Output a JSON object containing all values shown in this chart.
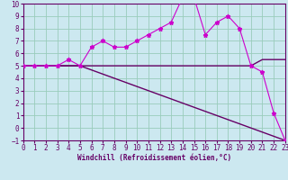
{
  "xlabel": "Windchill (Refroidissement éolien,°C)",
  "bg_color": "#cce8f0",
  "grid_color": "#99ccbb",
  "line_color1": "#cc00cc",
  "line_color2": "#660066",
  "line_color3": "#aa00aa",
  "axis_color": "#660066",
  "xmin": 0,
  "xmax": 23,
  "ymin": -1,
  "ymax": 10,
  "yticks": [
    -1,
    0,
    1,
    2,
    3,
    4,
    5,
    6,
    7,
    8,
    9,
    10
  ],
  "xticks": [
    0,
    1,
    2,
    3,
    4,
    5,
    6,
    7,
    8,
    9,
    10,
    11,
    12,
    13,
    14,
    15,
    16,
    17,
    18,
    19,
    20,
    21,
    22,
    23
  ],
  "line1_x": [
    0,
    1,
    2,
    3,
    4,
    5,
    6,
    7,
    8,
    9,
    10,
    11,
    12,
    13,
    14,
    15,
    16,
    17,
    18,
    19,
    20,
    21,
    22,
    23
  ],
  "line1_y": [
    5.0,
    5.0,
    5.0,
    5.0,
    5.5,
    5.0,
    6.5,
    7.0,
    6.5,
    6.5,
    7.0,
    7.5,
    8.0,
    8.5,
    10.5,
    10.5,
    7.5,
    8.5,
    9.0,
    8.0,
    5.0,
    4.5,
    1.2,
    -1.0
  ],
  "line2_x": [
    0,
    5,
    19,
    20,
    21,
    22,
    23
  ],
  "line2_y": [
    5.0,
    5.0,
    5.0,
    5.0,
    5.5,
    5.5,
    5.5
  ],
  "line3_x": [
    0,
    5,
    23
  ],
  "line3_y": [
    5.0,
    5.0,
    -1.0
  ]
}
